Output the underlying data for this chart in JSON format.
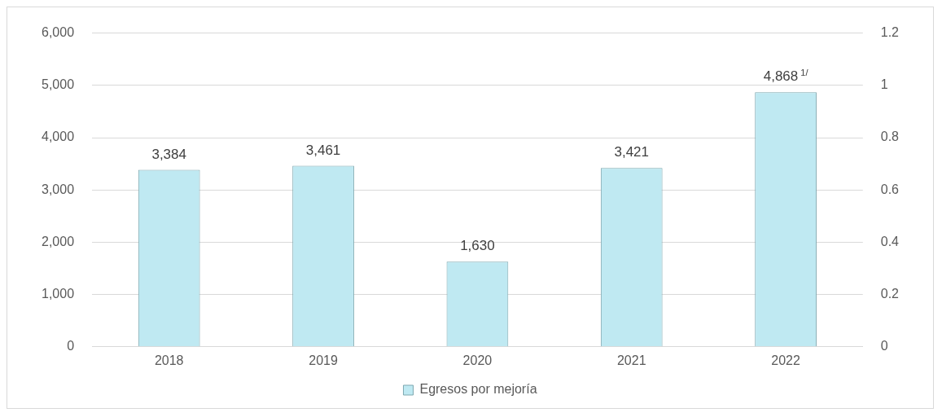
{
  "chart_data": {
    "type": "bar",
    "categories": [
      "2018",
      "2019",
      "2020",
      "2021",
      "2022"
    ],
    "series": [
      {
        "name": "Egresos por mejoría",
        "color": "#bfe9f2",
        "values": [
          3384,
          3461,
          1630,
          3421,
          4868
        ],
        "value_labels": [
          "3,384",
          "3,461",
          "1,630",
          "3,421",
          "4,868$^{1/}$"
        ]
      }
    ],
    "ylim": [
      0,
      6000
    ],
    "yticks": [
      {
        "value": 0,
        "label": "0"
      },
      {
        "value": 1000,
        "label": "1,000"
      },
      {
        "value": 2000,
        "label": "2,000"
      },
      {
        "value": 3000,
        "label": "3,000"
      },
      {
        "value": 4000,
        "label": "4,000"
      },
      {
        "value": 5000,
        "label": "5,000"
      },
      {
        "value": 6000,
        "label": "6,000"
      }
    ],
    "y2lim": [
      0,
      1.2
    ],
    "y2ticks": [
      0,
      0.2,
      0.4,
      0.6,
      0.8,
      1,
      1.2
    ],
    "grid": "y",
    "legend": "bottom"
  }
}
